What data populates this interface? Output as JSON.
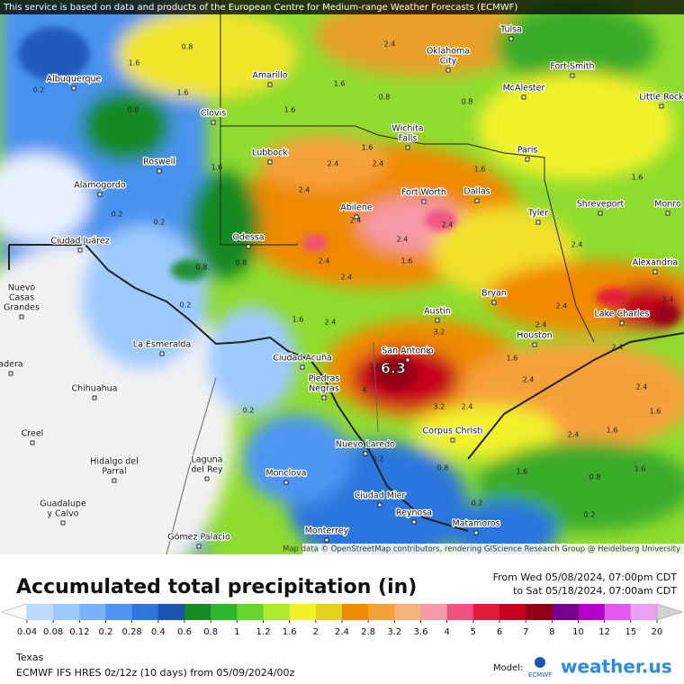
{
  "banner": "This service is based on data and products of the European Centre for Medium-range Weather Forecasts (ECMWF)",
  "attribution": "Map data © OpenStreetMap contributors, rendering GIScience Research Group @ Heidelberg University",
  "title": "Accumulated total precipitation (in)",
  "period": {
    "from": "From Wed 05/08/2024, 07:00pm CDT",
    "to": "to Sat 05/18/2024, 07:00am CDT"
  },
  "scale": {
    "values": [
      0.04,
      0.08,
      0.12,
      0.2,
      0.28,
      0.4,
      0.6,
      0.8,
      1,
      1.2,
      1.6,
      2,
      2.4,
      2.8,
      3.2,
      3.6,
      4,
      5,
      6,
      7,
      8,
      10,
      12,
      15,
      20
    ],
    "colors": [
      "#ffffff",
      "#bcdcff",
      "#9ccaff",
      "#78b2fb",
      "#4e95f2",
      "#2c76de",
      "#1a55b4",
      "#178a22",
      "#2db62c",
      "#66d62d",
      "#aeea2e",
      "#f2f22c",
      "#e3d21e",
      "#f08a00",
      "#f6a03a",
      "#f9b27c",
      "#f59aa6",
      "#ee4e80",
      "#e2183c",
      "#c4001c",
      "#920016",
      "#78008c",
      "#b400c8",
      "#e356ef",
      "#eca2f3",
      "#f6d8f6",
      "#d2d2d2"
    ]
  },
  "region": "Texas",
  "model_info": "ECMWF IFS HRES 0z/12z (10 days) from  05/09/2024/00z",
  "model_label": "Model:",
  "ecmwf_logo": "ECMWF",
  "brand": "weather.us",
  "max_label": "6.3",
  "cities": [
    {
      "lines": [
        "Tulsa"
      ]
    },
    {
      "lines": [
        "Oklahoma",
        "City"
      ]
    },
    {
      "lines": [
        "Fort Smith"
      ]
    },
    {
      "lines": [
        "Albuquerque"
      ]
    },
    {
      "lines": [
        "Amarillo"
      ]
    },
    {
      "lines": [
        "McAlester"
      ]
    },
    {
      "lines": [
        "Little Rock"
      ]
    },
    {
      "lines": [
        "Clovis"
      ]
    },
    {
      "lines": [
        "Wichita",
        "Falls"
      ]
    },
    {
      "lines": [
        "Paris"
      ]
    },
    {
      "lines": [
        "Lubbock"
      ]
    },
    {
      "lines": [
        "Roswell"
      ]
    },
    {
      "lines": [
        "Alamogordo"
      ]
    },
    {
      "lines": [
        "Fort Worth"
      ]
    },
    {
      "lines": [
        "Dallas"
      ]
    },
    {
      "lines": [
        "Shreveport"
      ]
    },
    {
      "lines": [
        "Monro"
      ]
    },
    {
      "lines": [
        "Tyler"
      ]
    },
    {
      "lines": [
        "Abilene"
      ]
    },
    {
      "lines": [
        "Ciudad Juárez"
      ]
    },
    {
      "lines": [
        "Odessa"
      ]
    },
    {
      "lines": [
        "Alexandria"
      ]
    },
    {
      "lines": [
        "Nuevo",
        "Casas",
        "Grandes"
      ]
    },
    {
      "lines": [
        "Bryan"
      ]
    },
    {
      "lines": [
        "Austin"
      ]
    },
    {
      "lines": [
        "Lake Charles"
      ]
    },
    {
      "lines": [
        "Houston"
      ]
    },
    {
      "lines": [
        "La Esmeralda"
      ]
    },
    {
      "lines": [
        "San Antonio"
      ]
    },
    {
      "lines": [
        "Ciudad Acuña"
      ]
    },
    {
      "lines": [
        "Piedras",
        "Negras"
      ]
    },
    {
      "lines": [
        "Chihuahua"
      ]
    },
    {
      "lines": [
        "Corpus Christi"
      ]
    },
    {
      "lines": [
        "Nuevo Laredo"
      ]
    },
    {
      "lines": [
        "Creel"
      ]
    },
    {
      "lines": [
        "Hidalgo del",
        "Parral"
      ]
    },
    {
      "lines": [
        "Laguna",
        "del Rey"
      ]
    },
    {
      "lines": [
        "Monclova"
      ]
    },
    {
      "lines": [
        "Guadalupe",
        "y Calvo"
      ]
    },
    {
      "lines": [
        "Ciudad Mier"
      ]
    },
    {
      "lines": [
        "Reynosa"
      ]
    },
    {
      "lines": [
        "Matamoros"
      ]
    },
    {
      "lines": [
        "Monterrey"
      ]
    },
    {
      "lines": [
        "Gómez Palacio"
      ]
    },
    {
      "lines": [
        "adera"
      ]
    }
  ],
  "contour_labels": [
    2.4,
    2.4,
    2.4,
    2.4,
    2.4,
    2.4,
    2.4,
    2.4,
    2.4,
    2.4,
    2.4,
    2.4,
    2.4,
    2.4,
    2.4,
    2.4,
    2.4,
    2.4,
    2.4,
    1.6,
    1.6,
    1.6,
    1.6,
    1.6,
    1.6,
    1.6,
    1.6,
    1.6,
    1.6,
    1.6,
    1.6,
    1.6,
    1.6,
    1.6,
    0.8,
    0.8,
    0.8,
    0.8,
    0.8,
    0.8,
    0.8,
    0.8,
    0.2,
    0.2,
    0.2,
    0.2,
    0.2,
    0.2,
    0.2,
    0.2,
    3.2,
    3.2,
    3.2,
    4,
    4
  ]
}
